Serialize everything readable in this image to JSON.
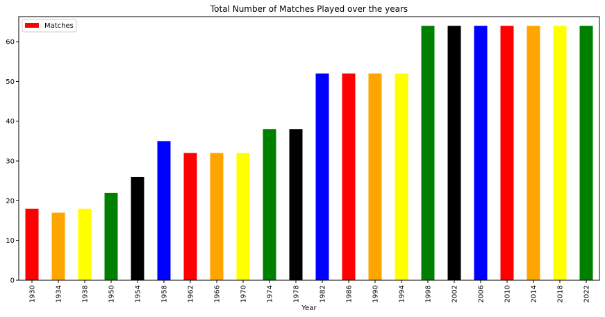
{
  "chart_data": {
    "type": "bar",
    "title": "Total Number of Matches Played over the years",
    "xlabel": "Year",
    "ylabel": "",
    "ylim": [
      0,
      66.3
    ],
    "yticks": [
      0,
      10,
      20,
      30,
      40,
      50,
      60
    ],
    "legend": {
      "label": "Matches",
      "color": "#ff0000",
      "placement": "top-left"
    },
    "grid": false,
    "categories": [
      "1930",
      "1934",
      "1938",
      "1950",
      "1954",
      "1958",
      "1962",
      "1966",
      "1970",
      "1974",
      "1978",
      "1982",
      "1986",
      "1990",
      "1994",
      "1998",
      "2002",
      "2006",
      "2010",
      "2014",
      "2018",
      "2022"
    ],
    "values": [
      18,
      17,
      18,
      22,
      26,
      35,
      32,
      32,
      32,
      38,
      38,
      52,
      52,
      52,
      52,
      64,
      64,
      64,
      64,
      64,
      64,
      64
    ],
    "colors": [
      "#ff0000",
      "#ffa500",
      "#ffff00",
      "#008000",
      "#000000",
      "#0000ff",
      "#ff0000",
      "#ffa500",
      "#ffff00",
      "#008000",
      "#000000",
      "#0000ff",
      "#ff0000",
      "#ffa500",
      "#ffff00",
      "#008000",
      "#000000",
      "#0000ff",
      "#ff0000",
      "#ffa500",
      "#ffff00",
      "#008000"
    ]
  }
}
